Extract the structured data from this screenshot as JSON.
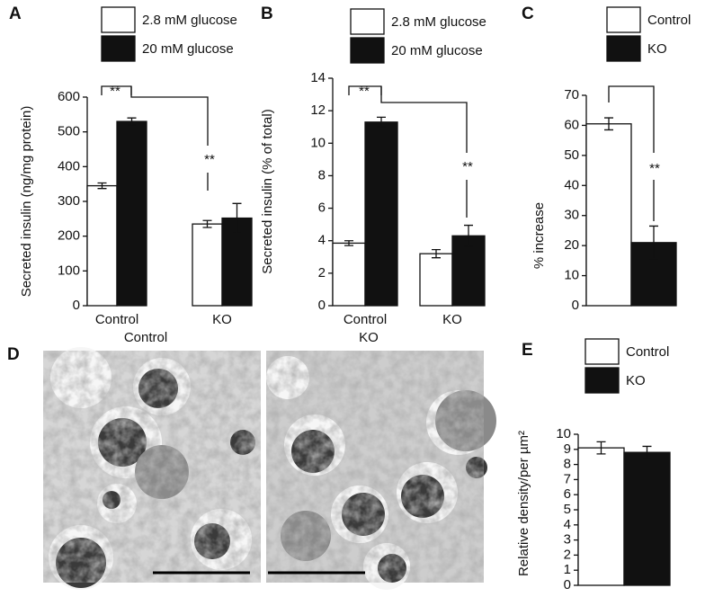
{
  "chart_data": [
    {
      "type": "bar",
      "panel_label": "A",
      "y_label": "Secreted insulin (ng/mg protein)",
      "categories": [
        "Control",
        "KO"
      ],
      "series": [
        {
          "name": "2.8 mM glucose",
          "color": "#ffffff",
          "values": [
            345,
            235
          ],
          "errors": [
            8,
            10
          ]
        },
        {
          "name": "20 mM glucose",
          "color": "#111111",
          "values": [
            530,
            252
          ],
          "errors": [
            10,
            42
          ]
        }
      ],
      "ylim": [
        0,
        600
      ],
      "yticks": [
        0,
        100,
        200,
        300,
        400,
        500,
        600
      ],
      "annotations": [
        "**",
        "**"
      ]
    },
    {
      "type": "bar",
      "panel_label": "B",
      "y_label": "Secreted insulin (% of total)",
      "categories": [
        "Control",
        "KO"
      ],
      "series": [
        {
          "name": "2.8 mM glucose",
          "color": "#ffffff",
          "values": [
            3.85,
            3.2
          ],
          "errors": [
            0.15,
            0.25
          ]
        },
        {
          "name": "20 mM glucose",
          "color": "#111111",
          "values": [
            11.3,
            4.3
          ],
          "errors": [
            0.3,
            0.65
          ]
        }
      ],
      "ylim": [
        0,
        14
      ],
      "yticks": [
        0,
        2,
        4,
        6,
        8,
        10,
        12,
        14
      ],
      "annotations": [
        "**",
        "**"
      ]
    },
    {
      "type": "bar",
      "panel_label": "C",
      "y_label": "% increase",
      "categories": [
        null
      ],
      "series": [
        {
          "name": "Control",
          "color": "#ffffff",
          "values": [
            60.5
          ],
          "errors": [
            2
          ]
        },
        {
          "name": "KO",
          "color": "#111111",
          "values": [
            21
          ],
          "errors": [
            5.5
          ]
        }
      ],
      "ylim": [
        0,
        70
      ],
      "yticks": [
        0,
        10,
        20,
        30,
        40,
        50,
        60,
        70
      ],
      "annotations": [
        "**"
      ]
    },
    {
      "type": "bar",
      "panel_label": "E",
      "y_label": "Relative density/per µm²",
      "categories": [
        null
      ],
      "series": [
        {
          "name": "Control",
          "color": "#ffffff",
          "values": [
            9.1
          ],
          "errors": [
            0.4
          ]
        },
        {
          "name": "KO",
          "color": "#111111",
          "values": [
            8.8
          ],
          "errors": [
            0.4
          ]
        }
      ],
      "ylim": [
        0,
        10
      ],
      "yticks": [
        0,
        1,
        2,
        3,
        4,
        5,
        6,
        7,
        8,
        9,
        10
      ],
      "annotations": []
    }
  ],
  "micrographs": {
    "panel_label": "D",
    "titles": [
      "Control",
      "KO"
    ]
  }
}
